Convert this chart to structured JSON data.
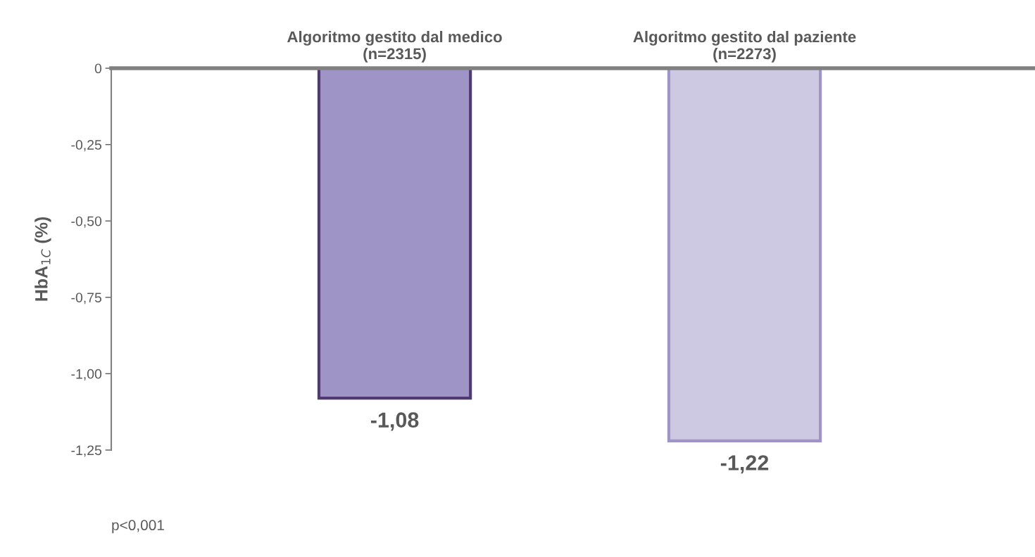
{
  "chart_data": {
    "type": "bar",
    "categories": [
      "Algoritmo gestito dal medico\n(n=2315)",
      "Algoritmo gestito dal paziente\n(n=2273)"
    ],
    "values": [
      -1.08,
      -1.22
    ],
    "value_labels": [
      "-1,08",
      "-1,22"
    ],
    "colors": [
      "#9e94c6",
      "#cdc9e3"
    ],
    "ylabel": "HbA$_{1C}$ (%)",
    "ylim": [
      -1.25,
      0
    ],
    "yticks": [
      0,
      {
        "value": -0.25,
        "label": "-0,25"
      },
      {
        "value": -0.5,
        "label": "-0,50"
      },
      {
        "value": -0.75,
        "label": "-0,75"
      },
      {
        "value": -1.0,
        "label": "-1,00"
      },
      {
        "value": -1.25,
        "label": "-1,25"
      }
    ],
    "annotations": [
      "p<0,001"
    ],
    "grid": false,
    "legend": false
  }
}
